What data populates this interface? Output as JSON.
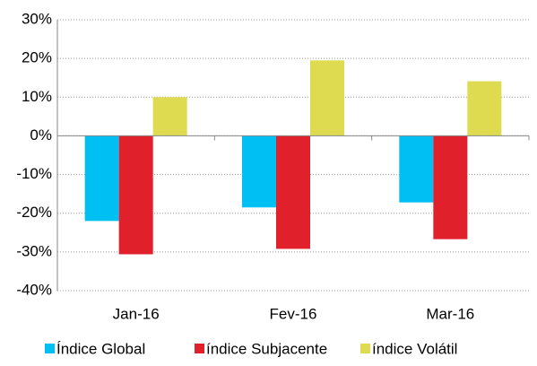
{
  "chart_data": {
    "type": "bar",
    "categories": [
      "Jan-16",
      "Fev-16",
      "Mar-16"
    ],
    "series": [
      {
        "name": "Índice Global",
        "color": "#00bff3",
        "values": [
          -22,
          -18.5,
          -17.2
        ]
      },
      {
        "name": "índice Subjacente",
        "color": "#e0202a",
        "values": [
          -30.6,
          -29.2,
          -26.7
        ]
      },
      {
        "name": "índice Volátil",
        "color": "#dedb50",
        "values": [
          10,
          19.5,
          14.1
        ]
      }
    ],
    "ylim": [
      -40,
      30
    ],
    "yticks": [
      {
        "value": -40,
        "label": "-40%"
      },
      {
        "value": -30,
        "label": "-30%"
      },
      {
        "value": -20,
        "label": "-20%"
      },
      {
        "value": -10,
        "label": "-10%"
      },
      {
        "value": 0,
        "label": "0%"
      },
      {
        "value": 10,
        "label": "10%"
      },
      {
        "value": 20,
        "label": "20%"
      },
      {
        "value": 30,
        "label": "30%"
      }
    ],
    "grid": true,
    "legend": "bottom"
  }
}
